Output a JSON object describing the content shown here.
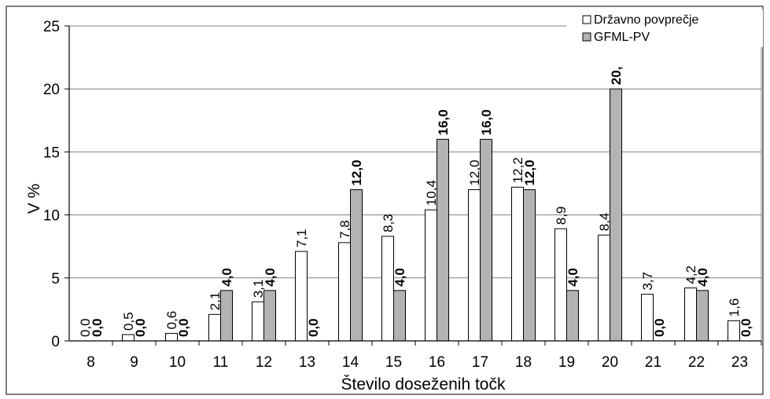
{
  "chart_data": {
    "type": "bar",
    "title": "",
    "xlabel": "Število doseženih točk",
    "ylabel": "V %",
    "ylim": [
      0,
      25
    ],
    "yticks": [
      0,
      5,
      10,
      15,
      20,
      25
    ],
    "grid": true,
    "legend_position": "top-right",
    "categories": [
      "8",
      "9",
      "10",
      "11",
      "12",
      "13",
      "14",
      "15",
      "16",
      "17",
      "18",
      "19",
      "20",
      "21",
      "22",
      "23"
    ],
    "series": [
      {
        "name": "Državno povprečje",
        "color": "#ffffff",
        "values": [
          0.0,
          0.5,
          0.6,
          2.1,
          3.1,
          7.1,
          7.8,
          8.3,
          10.4,
          12.0,
          12.2,
          8.9,
          8.4,
          3.7,
          4.2,
          1.6
        ],
        "labels": [
          "0,0",
          "0,5",
          "0,6",
          "2,1",
          "3,1",
          "7,1",
          "7,8",
          "8,3",
          "10,4",
          "12,0",
          "12,2",
          "8,9",
          "8,4",
          "3,7",
          "4,2",
          "1,6"
        ]
      },
      {
        "name": "GFML-PV",
        "color": "#b3b3b3",
        "values": [
          0.0,
          0.0,
          0.0,
          4.0,
          4.0,
          0.0,
          12.0,
          4.0,
          16.0,
          16.0,
          12.0,
          4.0,
          20.0,
          0.0,
          4.0,
          0.0
        ],
        "labels": [
          "0,0",
          "0,0",
          "0,0",
          "4,0",
          "4,0",
          "0,0",
          "12,0",
          "4,0",
          "16,0",
          "16,0",
          "12,0",
          "4,0",
          "20,",
          "0,0",
          "4,0",
          "0,0"
        ]
      }
    ]
  }
}
